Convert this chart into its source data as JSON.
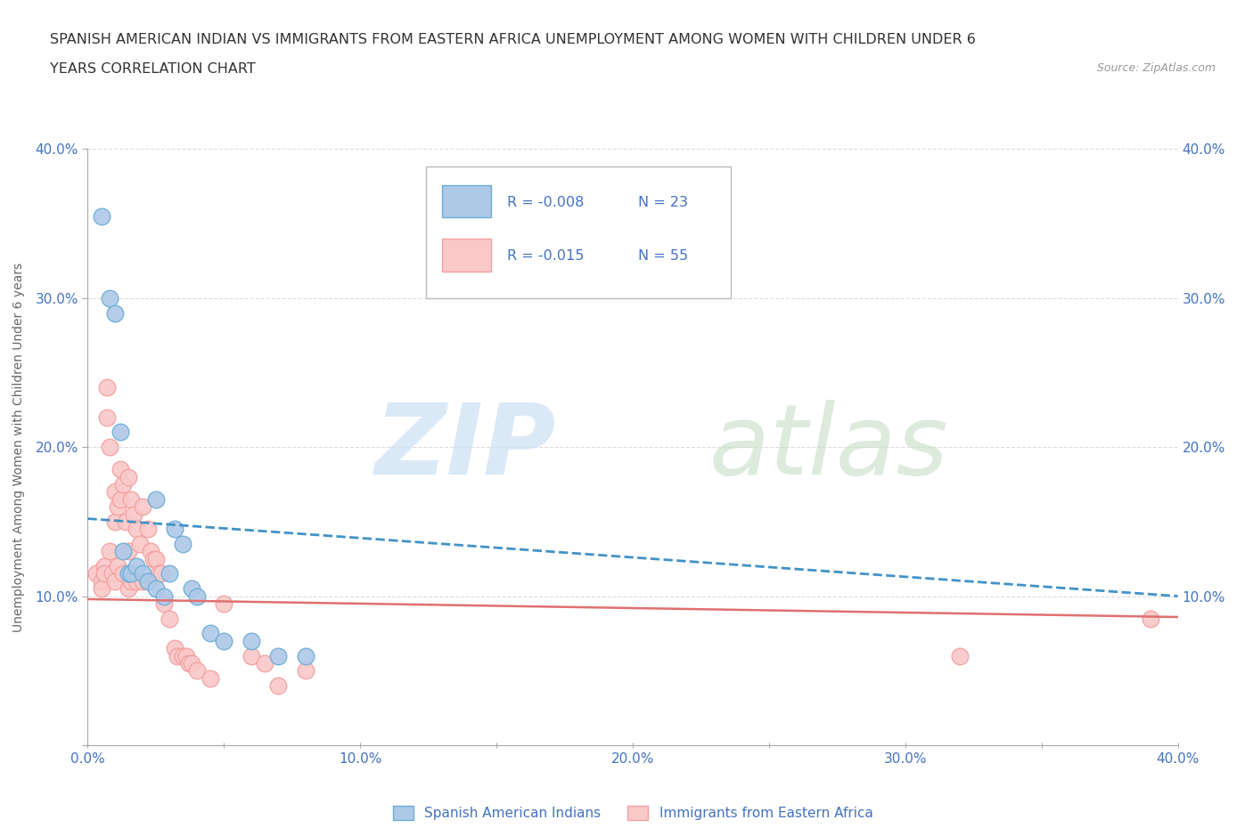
{
  "title_line1": "SPANISH AMERICAN INDIAN VS IMMIGRANTS FROM EASTERN AFRICA UNEMPLOYMENT AMONG WOMEN WITH CHILDREN UNDER 6",
  "title_line2": "YEARS CORRELATION CHART",
  "source": "Source: ZipAtlas.com",
  "ylabel": "Unemployment Among Women with Children Under 6 years",
  "xlim": [
    0.0,
    0.4
  ],
  "ylim": [
    0.0,
    0.4
  ],
  "xticks_major": [
    0.0,
    0.1,
    0.2,
    0.3,
    0.4
  ],
  "xticks_minor": [
    0.0,
    0.05,
    0.1,
    0.15,
    0.2,
    0.25,
    0.3,
    0.35,
    0.4
  ],
  "yticks_major": [
    0.0,
    0.1,
    0.2,
    0.3,
    0.4
  ],
  "xtick_labels": [
    "0.0%",
    "",
    "10.0%",
    "",
    "20.0%",
    "",
    "30.0%",
    "",
    "40.0%"
  ],
  "ytick_labels": [
    "",
    "10.0%",
    "20.0%",
    "30.0%",
    "40.0%"
  ],
  "grid_color": "#dddddd",
  "background_color": "#ffffff",
  "blue_scatter_x": [
    0.005,
    0.008,
    0.01,
    0.012,
    0.013,
    0.015,
    0.016,
    0.018,
    0.02,
    0.022,
    0.025,
    0.025,
    0.028,
    0.03,
    0.032,
    0.035,
    0.038,
    0.04,
    0.045,
    0.05,
    0.06,
    0.07,
    0.08
  ],
  "blue_scatter_y": [
    0.355,
    0.3,
    0.29,
    0.21,
    0.13,
    0.115,
    0.115,
    0.12,
    0.115,
    0.11,
    0.165,
    0.105,
    0.1,
    0.115,
    0.145,
    0.135,
    0.105,
    0.1,
    0.075,
    0.07,
    0.07,
    0.06,
    0.06
  ],
  "pink_scatter_x": [
    0.003,
    0.005,
    0.005,
    0.006,
    0.006,
    0.007,
    0.007,
    0.008,
    0.008,
    0.009,
    0.01,
    0.01,
    0.01,
    0.011,
    0.011,
    0.012,
    0.012,
    0.013,
    0.013,
    0.014,
    0.015,
    0.015,
    0.015,
    0.016,
    0.016,
    0.017,
    0.018,
    0.018,
    0.019,
    0.02,
    0.02,
    0.022,
    0.022,
    0.023,
    0.024,
    0.025,
    0.026,
    0.027,
    0.028,
    0.03,
    0.032,
    0.033,
    0.035,
    0.036,
    0.037,
    0.038,
    0.04,
    0.045,
    0.05,
    0.06,
    0.065,
    0.07,
    0.08,
    0.32,
    0.39
  ],
  "pink_scatter_y": [
    0.115,
    0.11,
    0.105,
    0.12,
    0.115,
    0.24,
    0.22,
    0.2,
    0.13,
    0.115,
    0.17,
    0.15,
    0.11,
    0.16,
    0.12,
    0.185,
    0.165,
    0.175,
    0.115,
    0.15,
    0.18,
    0.13,
    0.105,
    0.165,
    0.11,
    0.155,
    0.145,
    0.11,
    0.135,
    0.16,
    0.11,
    0.145,
    0.11,
    0.13,
    0.125,
    0.125,
    0.115,
    0.115,
    0.095,
    0.085,
    0.065,
    0.06,
    0.06,
    0.06,
    0.055,
    0.055,
    0.05,
    0.045,
    0.095,
    0.06,
    0.055,
    0.04,
    0.05,
    0.06,
    0.085
  ],
  "blue_line_x": [
    0.0,
    0.4
  ],
  "blue_line_y_start": 0.152,
  "blue_line_y_end": 0.1,
  "pink_line_x": [
    0.0,
    0.4
  ],
  "pink_line_y_start": 0.098,
  "pink_line_y_end": 0.086,
  "blue_color": "#6baed6",
  "blue_fill": "#aec8e8",
  "pink_color": "#f4a0a0",
  "pink_fill": "#f9c8c8",
  "trend_blue_color": "#4292c6",
  "trend_pink_color": "#e07070",
  "legend_r1": "-0.008",
  "legend_n1": "23",
  "legend_r2": "-0.015",
  "legend_n2": "55",
  "legend_label1": "Spanish American Indians",
  "legend_label2": "Immigrants from Eastern Africa",
  "label_color": "#4472c4",
  "label_fontsize": 11
}
